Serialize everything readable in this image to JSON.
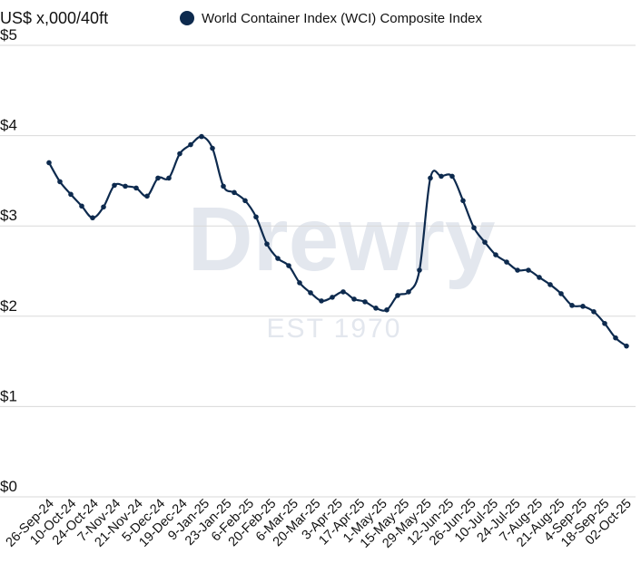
{
  "chart_data": {
    "type": "line",
    "unit_label": "US$ x,000/40ft",
    "legend": "World Container Index (WCI) Composite Index",
    "series_color": "#0d2a4e",
    "grid_color": "#d9d9d9",
    "y_ticks": [
      {
        "value": 0,
        "label": "$0"
      },
      {
        "value": 1,
        "label": "$1"
      },
      {
        "value": 2,
        "label": "$2"
      },
      {
        "value": 3,
        "label": "$3"
      },
      {
        "value": 4,
        "label": "$4"
      },
      {
        "value": 5,
        "label": "$5"
      }
    ],
    "ylim": [
      0,
      5
    ],
    "x_tick_labels": [
      "26-Sep-24",
      "10-Oct-24",
      "24-Oct-24",
      "7-Nov-24",
      "21-Nov-24",
      "5-Dec-24",
      "19-Dec-24",
      "9-Jan-25",
      "23-Jan-25",
      "6-Feb-25",
      "20-Feb-25",
      "6-Mar-25",
      "20-Mar-25",
      "3-Apr-25",
      "17-Apr-25",
      "1-May-25",
      "15-May-25",
      "29-May-25",
      "12-Jun-25",
      "26-Jun-25",
      "10-Jul-25",
      "24-Jul-25",
      "7-Aug-25",
      "21-Aug-25",
      "4-Sep-25",
      "18-Sep-25",
      "02-Oct-25"
    ],
    "values": [
      3.7,
      3.49,
      3.35,
      3.22,
      3.09,
      3.21,
      3.45,
      3.44,
      3.42,
      3.33,
      3.53,
      3.53,
      3.8,
      3.9,
      3.99,
      3.86,
      3.44,
      3.37,
      3.28,
      3.1,
      2.8,
      2.64,
      2.56,
      2.37,
      2.26,
      2.17,
      2.21,
      2.27,
      2.19,
      2.16,
      2.09,
      2.07,
      2.23,
      2.27,
      2.51,
      3.53,
      3.55,
      3.55,
      3.28,
      2.98,
      2.82,
      2.68,
      2.6,
      2.51,
      2.51,
      2.43,
      2.35,
      2.25,
      2.12,
      2.11,
      2.05,
      1.92,
      1.76,
      1.67
    ]
  },
  "watermark": {
    "brand": "Drewry",
    "tagline": "EST 1970"
  }
}
